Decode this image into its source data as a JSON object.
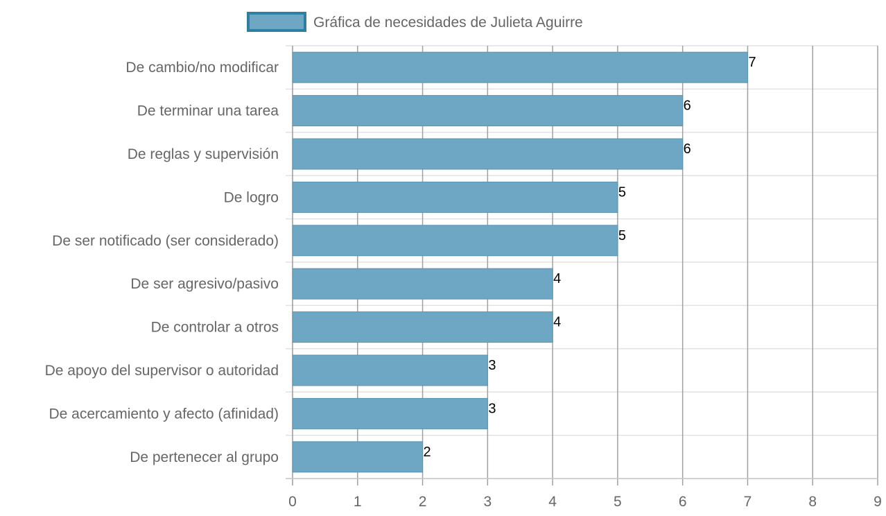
{
  "chart_data": {
    "type": "bar",
    "orientation": "horizontal",
    "legend": {
      "position": "top",
      "label": "Gráfica de necesidades de Julieta Aguirre"
    },
    "categories": [
      "De cambio/no modificar",
      "De terminar una tarea",
      "De reglas y supervisión",
      "De logro",
      "De ser notificado (ser considerado)",
      "De ser agresivo/pasivo",
      "De controlar a otros",
      "De apoyo del supervisor o autoridad",
      "De acercamiento y afecto (afinidad)",
      "De pertenecer al grupo"
    ],
    "series": [
      {
        "name": "Gráfica de necesidades de Julieta Aguirre",
        "values": [
          7,
          6,
          6,
          5,
          5,
          4,
          4,
          3,
          3,
          2
        ]
      }
    ],
    "xlim": [
      0,
      9
    ],
    "xticks": [
      0,
      1,
      2,
      3,
      4,
      5,
      6,
      7,
      8,
      9
    ],
    "grid": true,
    "data_labels": true,
    "colors": {
      "bar_fill": "#6da7c4",
      "bar_stroke": "#5b93b1",
      "legend_swatch_fill": "#6da7c4",
      "legend_swatch_border": "#2f7fa3"
    }
  }
}
